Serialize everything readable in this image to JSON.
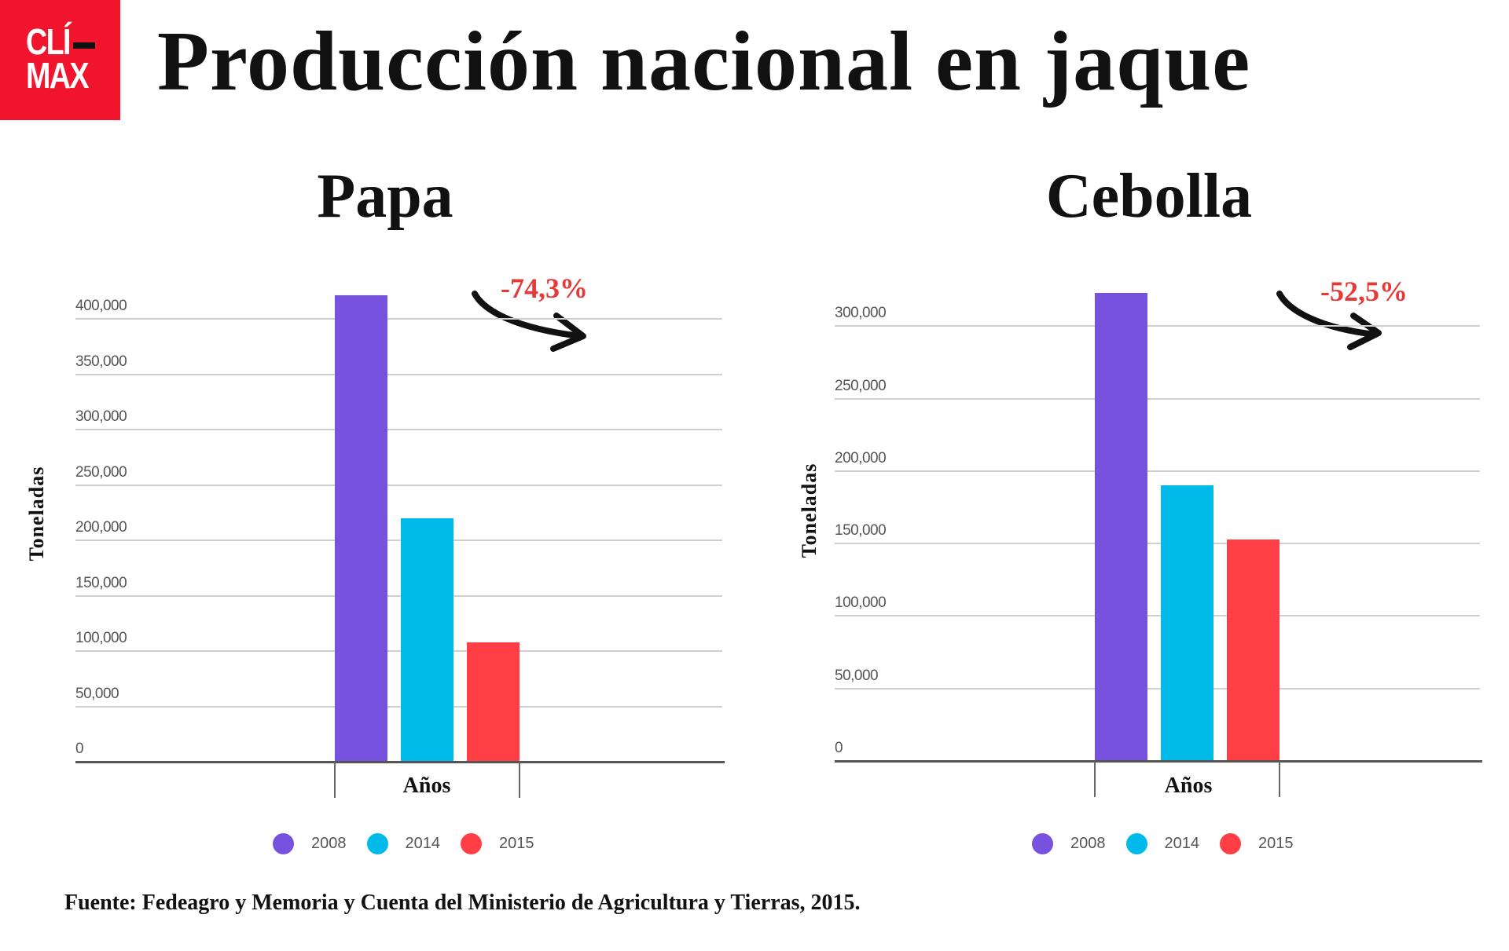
{
  "header": {
    "logo_line1": "CLÍ",
    "logo_line2": "MAX",
    "title": "Producción nacional en jaque"
  },
  "colors": {
    "logo_red": "#f0142d",
    "series_2008": "#7752de",
    "series_2014": "#00bbe9",
    "series_2015": "#ff3e46",
    "annotation_red": "#e63a3a"
  },
  "footer": {
    "source": "Fuente: Fedeagro y Memoria y Cuenta del Ministerio de Agricultura y Tierras, 2015."
  },
  "charts": [
    {
      "subtitle": "Papa",
      "ylabel": "Toneladas",
      "xlabel": "Años",
      "change_label": "-74,3%",
      "yticks": [
        "0",
        "50,000",
        "100,000",
        "150,000",
        "200,000",
        "250,000",
        "300,000",
        "350,000",
        "400,000"
      ],
      "legend": [
        {
          "label": "2008"
        },
        {
          "label": "2014"
        },
        {
          "label": "2015"
        }
      ]
    },
    {
      "subtitle": "Cebolla",
      "ylabel": "Toneladas",
      "xlabel": "Años",
      "change_label": "-52,5%",
      "yticks": [
        "0",
        "50,000",
        "100,000",
        "150,000",
        "200,000",
        "250,000",
        "300,000"
      ],
      "legend": [
        {
          "label": "2008"
        },
        {
          "label": "2014"
        },
        {
          "label": "2015"
        }
      ]
    }
  ],
  "chart_data": [
    {
      "type": "bar",
      "title": "Papa",
      "xlabel": "Años",
      "ylabel": "Toneladas",
      "categories": [
        "Años"
      ],
      "series": [
        {
          "name": "2008",
          "values": [
            421000
          ]
        },
        {
          "name": "2014",
          "values": [
            220000
          ]
        },
        {
          "name": "2015",
          "values": [
            108000
          ]
        }
      ],
      "ylim": [
        0,
        400000
      ],
      "ytick_step": 50000,
      "grid": true,
      "legend_position": "bottom",
      "annotations": [
        "-74,3%"
      ]
    },
    {
      "type": "bar",
      "title": "Cebolla",
      "xlabel": "Años",
      "ylabel": "Toneladas",
      "categories": [
        "Años"
      ],
      "series": [
        {
          "name": "2008",
          "values": [
            323000
          ]
        },
        {
          "name": "2014",
          "values": [
            190000
          ]
        },
        {
          "name": "2015",
          "values": [
            153000
          ]
        }
      ],
      "ylim": [
        0,
        300000
      ],
      "ytick_step": 50000,
      "grid": true,
      "legend_position": "bottom",
      "annotations": [
        "-52,5%"
      ]
    }
  ]
}
